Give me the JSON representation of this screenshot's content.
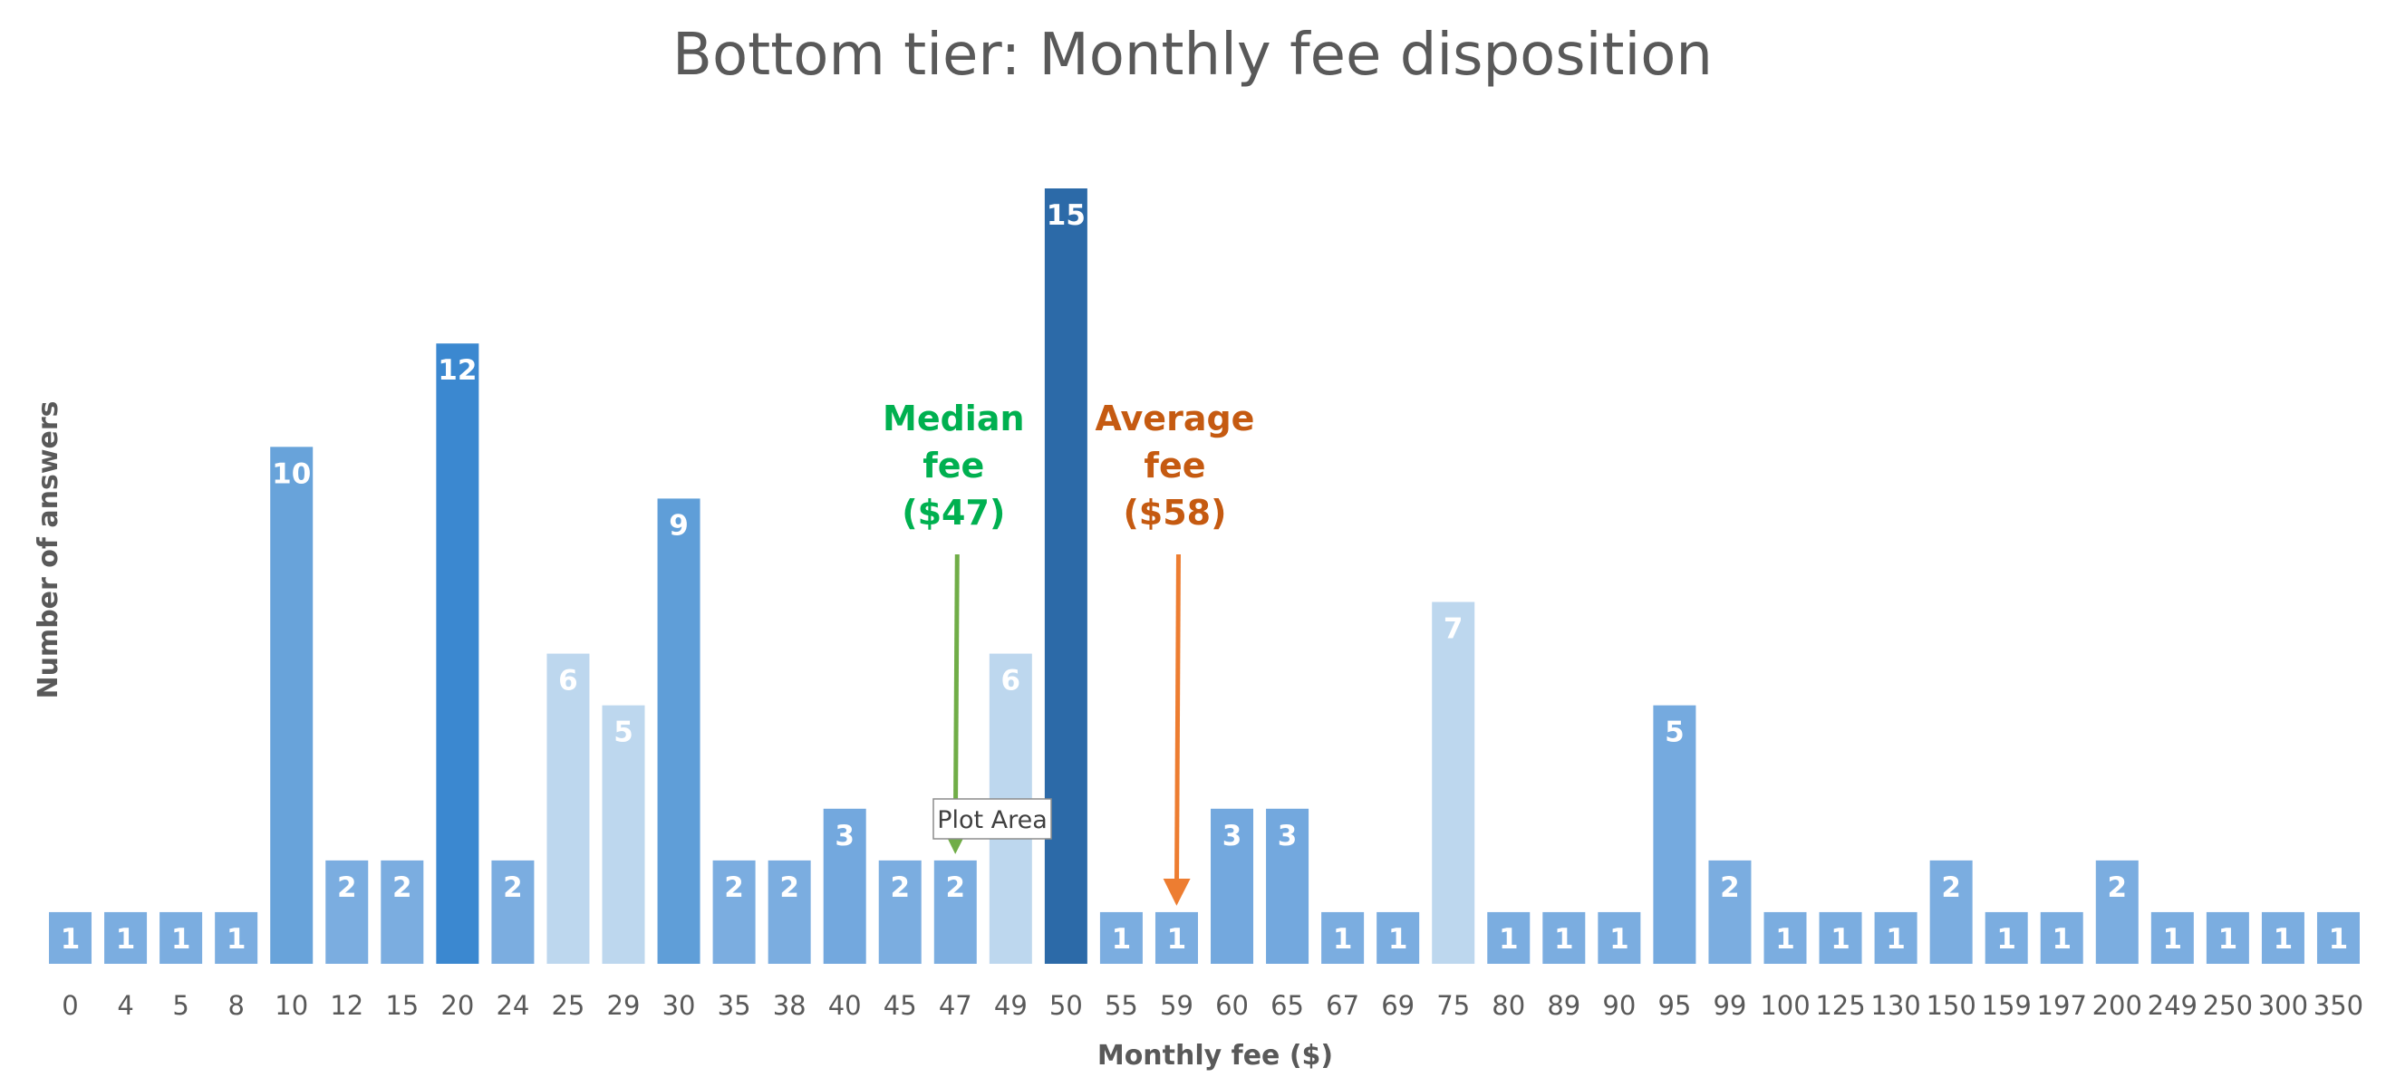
{
  "chart_data": {
    "type": "bar",
    "title": "Bottom tier: Monthly fee disposition",
    "xlabel": "Monthly fee ($)",
    "ylabel": "Number of answers",
    "ylim": [
      0,
      15
    ],
    "grid": false,
    "categories": [
      "0",
      "4",
      "5",
      "8",
      "10",
      "12",
      "15",
      "20",
      "24",
      "25",
      "29",
      "30",
      "35",
      "38",
      "40",
      "45",
      "47",
      "49",
      "50",
      "55",
      "59",
      "60",
      "65",
      "67",
      "69",
      "75",
      "80",
      "89",
      "90",
      "95",
      "99",
      "100",
      "125",
      "130",
      "150",
      "159",
      "197",
      "200",
      "249",
      "250",
      "300",
      "350"
    ],
    "values": [
      1,
      1,
      1,
      1,
      10,
      2,
      2,
      12,
      2,
      6,
      5,
      9,
      2,
      2,
      3,
      2,
      2,
      6,
      15,
      1,
      1,
      3,
      3,
      1,
      1,
      7,
      1,
      1,
      1,
      5,
      2,
      1,
      1,
      1,
      2,
      1,
      1,
      2,
      1,
      1,
      1,
      1
    ],
    "colors": [
      "#7bade0",
      "#7bade0",
      "#7bade0",
      "#7bade0",
      "#68a3da",
      "#7bade0",
      "#7bade0",
      "#3b88d0",
      "#7bade0",
      "#bdd7ee",
      "#bdd7ee",
      "#5f9ed8",
      "#7bade0",
      "#7bade0",
      "#73a8de",
      "#7bade0",
      "#7bade0",
      "#bdd7ee",
      "#2c6aa8",
      "#7bade0",
      "#7bade0",
      "#73a8de",
      "#73a8de",
      "#7bade0",
      "#7bade0",
      "#bdd7ee",
      "#7bade0",
      "#7bade0",
      "#7bade0",
      "#75aadf",
      "#7bade0",
      "#7bade0",
      "#7bade0",
      "#7bade0",
      "#7bade0",
      "#7bade0",
      "#7bade0",
      "#7bade0",
      "#7bade0",
      "#7bade0",
      "#7bade0",
      "#7bade0"
    ],
    "annotations": [
      {
        "lines": [
          "Median",
          "fee",
          "($47)"
        ],
        "category": "47",
        "color": "#00b050",
        "arrow_color": "#70ad47"
      },
      {
        "lines": [
          "Average",
          "fee",
          "($58)"
        ],
        "category": "59",
        "color": "#c55a11",
        "arrow_color": "#ed7d31"
      }
    ]
  },
  "tooltip": {
    "label": "Plot Area"
  }
}
